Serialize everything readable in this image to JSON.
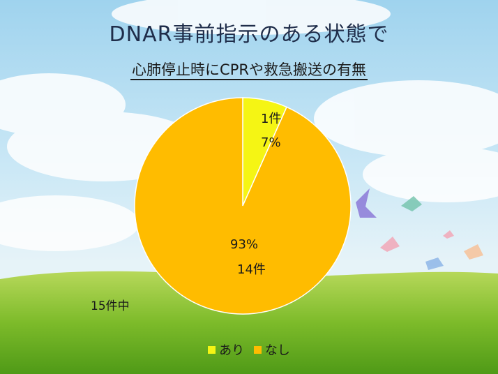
{
  "title": "DNAR事前指示のある状態で",
  "subtitle": "心肺停止時にCPRや救急搬送の有無",
  "note": "15件中",
  "colors": {
    "ari": "#f5f514",
    "nashi": "#ffbc00"
  },
  "chart_data": {
    "type": "pie",
    "title": "DNAR事前指示のある状態で",
    "subtitle": "心肺停止時にCPRや救急搬送の有無",
    "legend_position": "bottom",
    "slices": [
      {
        "label": "あり",
        "count": 1,
        "percent": 7,
        "count_text": "1件",
        "percent_text": "7%",
        "color": "#f5f514"
      },
      {
        "label": "なし",
        "count": 14,
        "percent": 93,
        "count_text": "14件",
        "percent_text": "93%",
        "color": "#ffbc00"
      }
    ],
    "total_note": "15件中"
  }
}
